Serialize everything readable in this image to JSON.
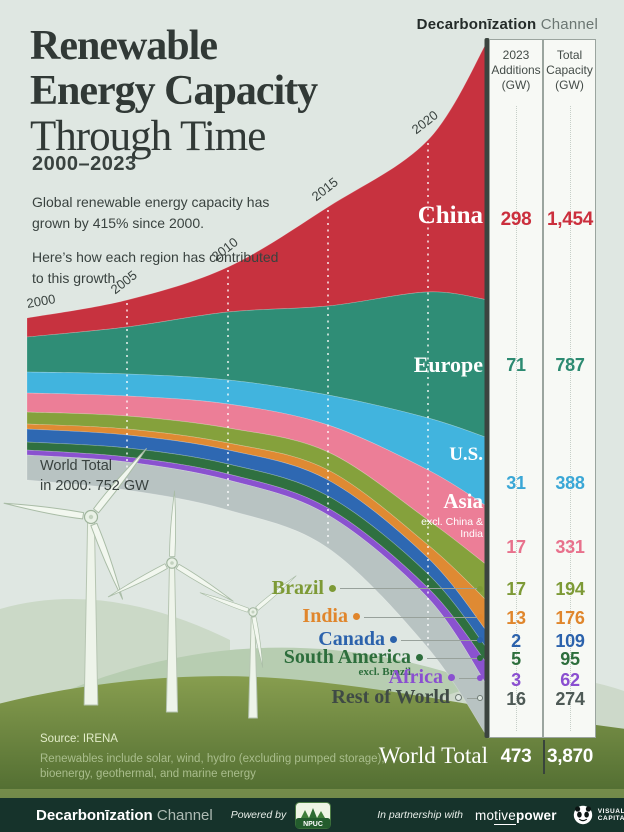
{
  "brand": {
    "bold": "Decarbonīzation",
    "light": "Channel"
  },
  "title": {
    "line1": "Renewable",
    "line2": "Energy Capacity",
    "line3": "Through Time",
    "subtitle": "2000–2023"
  },
  "intro": {
    "p1": "Global renewable energy capacity has grown by 415% since 2000.",
    "p2": "Here’s how each region has contributed to this growth."
  },
  "columns": {
    "additions": {
      "l1": "2023",
      "l2": "Additions",
      "l3": "(GW)"
    },
    "capacity": {
      "l1": "Total",
      "l2": "Capacity",
      "l3": "(GW)"
    }
  },
  "years": [
    "2000",
    "2005",
    "2010",
    "2015",
    "2020"
  ],
  "annotation": {
    "l1": "World Total",
    "l2": "in 2000: 752 GW"
  },
  "regions": [
    {
      "name": "China",
      "sub": "",
      "additions": "298",
      "total": "1,454",
      "text_color": "#cb2f3d"
    },
    {
      "name": "Europe",
      "sub": "",
      "additions": "71",
      "total": "787",
      "text_color": "#2c8a71"
    },
    {
      "name": "U.S.",
      "sub": "",
      "additions": "31",
      "total": "388",
      "text_color": "#3aa7d6"
    },
    {
      "name": "Asia",
      "sub": "excl. China & India",
      "additions": "17",
      "total": "331",
      "text_color": "#e8718c"
    },
    {
      "name": "Brazil",
      "sub": "",
      "additions": "17",
      "total": "194",
      "text_color": "#7d9a36"
    },
    {
      "name": "India",
      "sub": "",
      "additions": "13",
      "total": "176",
      "text_color": "#e0862c"
    },
    {
      "name": "Canada",
      "sub": "",
      "additions": "2",
      "total": "109",
      "text_color": "#2b62ac"
    },
    {
      "name": "South America",
      "sub": "excl. Brazil",
      "additions": "5",
      "total": "95",
      "text_color": "#2d6e3c"
    },
    {
      "name": "Africa",
      "sub": "",
      "additions": "3",
      "total": "62",
      "text_color": "#8a4fd0"
    },
    {
      "name": "Rest of World",
      "sub": "",
      "additions": "16",
      "total": "274",
      "text_color": "#4e5a56"
    }
  ],
  "world_total": {
    "label": "World Total",
    "additions": "473",
    "total": "3,870"
  },
  "source": {
    "line": "Source: IRENA",
    "note1": "Renewables include solar, wind, hydro (excluding pumped storage),",
    "note2": "bioenergy, geothermal, and marine energy"
  },
  "footer": {
    "powered_by": "Powered by",
    "npuc": "NPUC",
    "partnership": "In partnership with",
    "motive_pre": "mo",
    "motive_mid": "tive",
    "motive_bold": "power",
    "vc_line1": "VISUAL",
    "vc_line2": "CAPITALIST"
  },
  "chart_data": {
    "type": "area",
    "title": "Renewable Energy Capacity Through Time",
    "subtitle": "2000–2023",
    "unit": "GW",
    "source": "IRENA",
    "growth_since_2000_pct": 415,
    "x_ticks": [
      2000,
      2005,
      2010,
      2015,
      2020
    ],
    "x_range": [
      2000,
      2023
    ],
    "world_total_2000_gw": 752,
    "world_total_2023_gw": 3870,
    "world_additions_2023_gw": 473,
    "series": [
      {
        "name": "China",
        "color": "#c7323f",
        "capacity_2000_gw_est": 88,
        "additions_2023_gw": 298,
        "total_capacity_2023_gw": 1454
      },
      {
        "name": "Europe",
        "color": "#2f8d76",
        "capacity_2000_gw_est": 162,
        "additions_2023_gw": 71,
        "total_capacity_2023_gw": 787
      },
      {
        "name": "U.S.",
        "color": "#41b4de",
        "capacity_2000_gw_est": 97,
        "additions_2023_gw": 31,
        "total_capacity_2023_gw": 388
      },
      {
        "name": "Asia (excl. China & India)",
        "color": "#ec7e97",
        "capacity_2000_gw_est": 88,
        "additions_2023_gw": 17,
        "total_capacity_2023_gw": 331
      },
      {
        "name": "Brazil",
        "color": "#85a13c",
        "capacity_2000_gw_est": 56,
        "additions_2023_gw": 17,
        "total_capacity_2023_gw": 194
      },
      {
        "name": "India",
        "color": "#df8a33",
        "capacity_2000_gw_est": 23,
        "additions_2023_gw": 13,
        "total_capacity_2023_gw": 176
      },
      {
        "name": "Canada",
        "color": "#2e68b2",
        "capacity_2000_gw_est": 60,
        "additions_2023_gw": 2,
        "total_capacity_2023_gw": 109
      },
      {
        "name": "South America (excl. Brazil)",
        "color": "#2f7040",
        "capacity_2000_gw_est": 37,
        "additions_2023_gw": 5,
        "total_capacity_2023_gw": 95
      },
      {
        "name": "Africa",
        "color": "#8a52cf",
        "capacity_2000_gw_est": 23,
        "additions_2023_gw": 3,
        "total_capacity_2023_gw": 62
      },
      {
        "name": "Rest of World",
        "color": "#b8c3c2",
        "capacity_2000_gw_est": 118,
        "additions_2023_gw": 16,
        "total_capacity_2023_gw": 274
      }
    ],
    "legend_position": "on-chart and right-hand table",
    "grid": "dashed vertical year lines"
  }
}
